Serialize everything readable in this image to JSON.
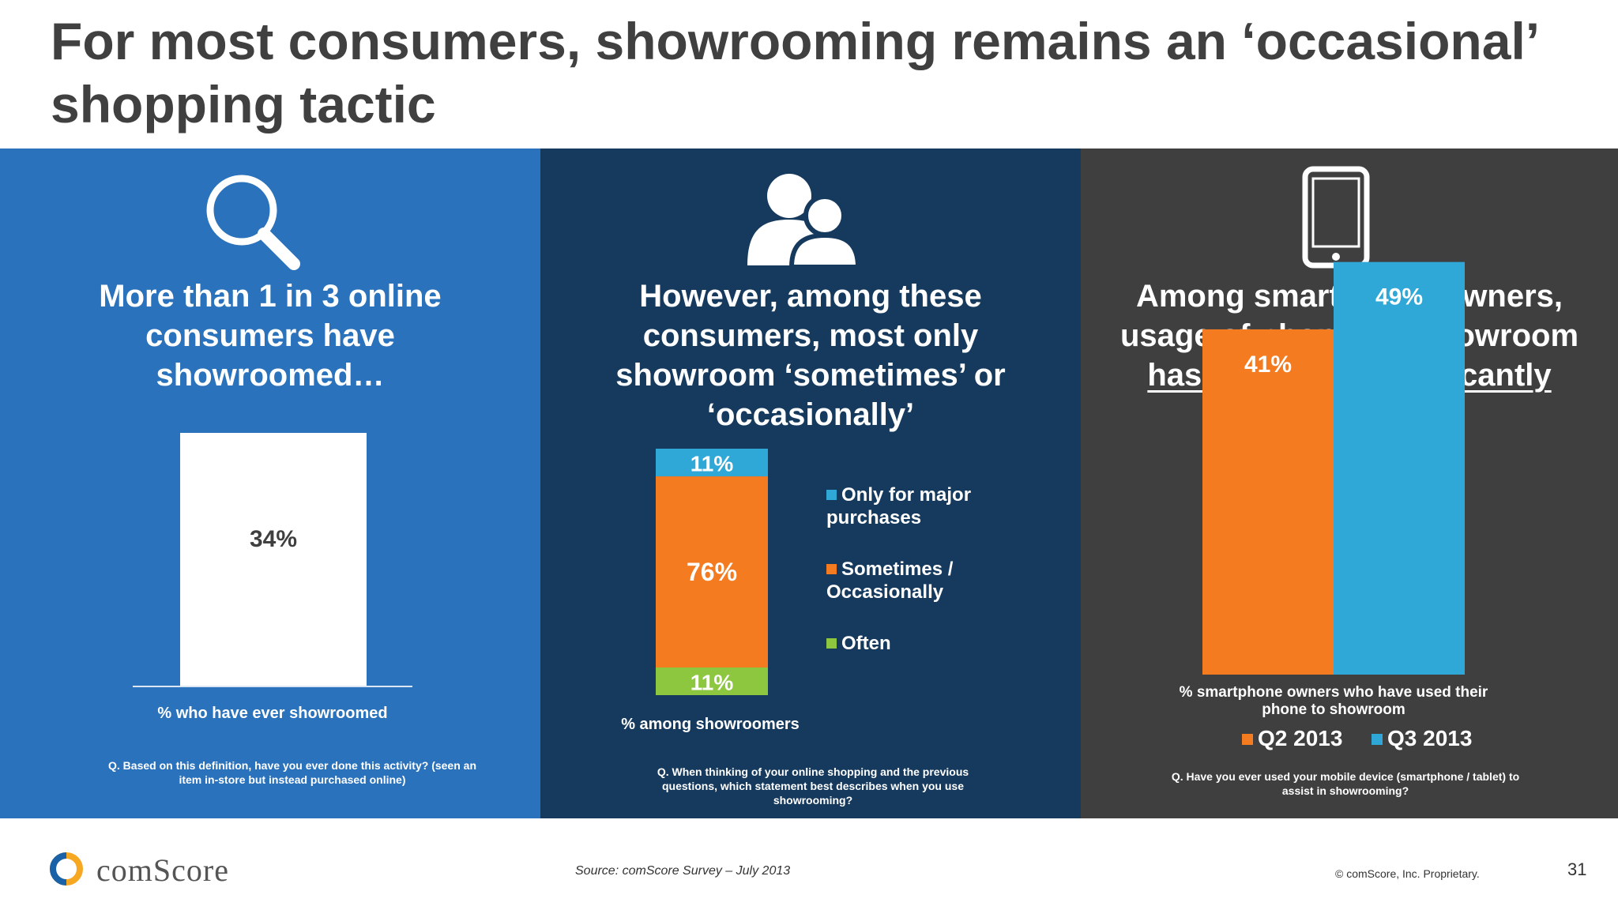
{
  "title": "For most consumers, showrooming remains an ‘occasional’ shopping tactic",
  "colors": {
    "panel1": "#2a72bb",
    "panel2": "#163a5e",
    "panel3": "#3f3f3f",
    "orange": "#f47b20",
    "light_blue": "#2fa8d8",
    "green": "#8dc63f",
    "white": "#ffffff"
  },
  "panel1": {
    "icon": "magnifying-glass-icon",
    "heading": "More than 1 in 3 online consumers have showroomed…",
    "axis_label": "% who have ever showroomed",
    "question": "Q. Based on this definition, have you ever done this activity? (seen an item in-store but instead purchased online)"
  },
  "panel2": {
    "icon": "people-icon",
    "heading": "However, among these consumers, most only showroom ‘sometimes’ or ‘occasionally’",
    "axis_label": "% among showroomers",
    "question": "Q. When thinking of your online shopping and the previous questions, which statement best describes when you use showrooming?"
  },
  "panel3": {
    "icon": "tablet-icon",
    "heading_plain": "Among smartphone owners, usage of phones to showroom ",
    "heading_underlined": "has increased significantly",
    "axis_label": "% smartphone owners who have used their phone to showroom",
    "question": "Q. Have you ever used your mobile device (smartphone / tablet) to assist in showrooming?"
  },
  "chart_data": [
    {
      "type": "bar",
      "categories": [
        "% who have ever showroomed"
      ],
      "values": [
        34
      ],
      "data_labels": [
        "34%"
      ],
      "ylim": [
        0,
        40
      ],
      "color": "#ffffff"
    },
    {
      "type": "bar",
      "stacked": true,
      "categories": [
        "% among showroomers"
      ],
      "series": [
        {
          "name": "Often",
          "values": [
            11
          ],
          "label": "11%",
          "color": "#8dc63f"
        },
        {
          "name": "Sometimes / Occasionally",
          "values": [
            76
          ],
          "label": "76%",
          "color": "#f47b20"
        },
        {
          "name": "Only for major purchases",
          "values": [
            11
          ],
          "label": "11%",
          "color": "#2fa8d8"
        }
      ],
      "legend": [
        {
          "name": "Only for major purchases",
          "color": "#2fa8d8"
        },
        {
          "name": "Sometimes / Occasionally",
          "color": "#f47b20"
        },
        {
          "name": "Often",
          "color": "#8dc63f"
        }
      ],
      "legend_position": "right",
      "ylim": [
        0,
        98
      ]
    },
    {
      "type": "bar",
      "categories": [
        "% smartphone owners who have used their phone to showroom"
      ],
      "series": [
        {
          "name": "Q2 2013",
          "values": [
            41
          ],
          "label": "41%",
          "color": "#f47b20"
        },
        {
          "name": "Q3 2013",
          "values": [
            49
          ],
          "label": "49%",
          "color": "#2fa8d8"
        }
      ],
      "legend_position": "bottom",
      "ylim": [
        0,
        50
      ]
    }
  ],
  "footer": {
    "logo_text": "comScore",
    "source": "Source: comScore Survey – July 2013",
    "copyright": "© comScore, Inc. Proprietary.",
    "page_number": "31"
  }
}
